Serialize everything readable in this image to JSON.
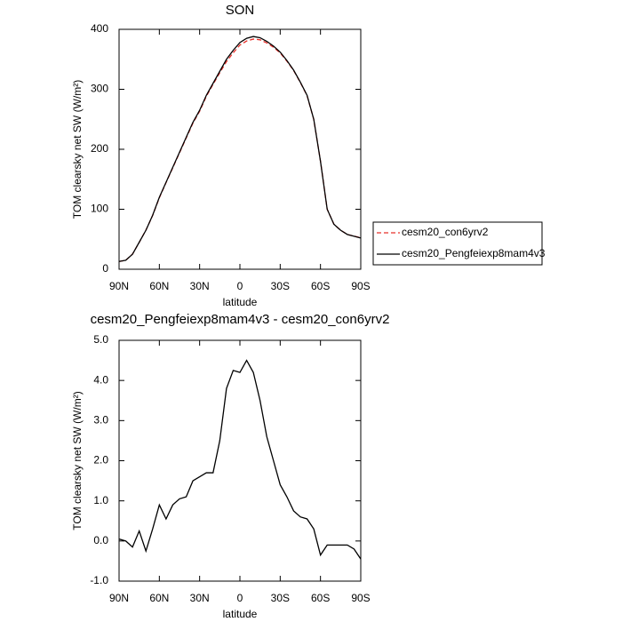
{
  "chart_data": [
    {
      "type": "line",
      "title": "SON",
      "xlabel": "latitude",
      "ylabel": "TOM clearsky net SW (W/m²)",
      "x": [
        90,
        85,
        80,
        75,
        70,
        65,
        60,
        55,
        50,
        45,
        40,
        35,
        30,
        25,
        20,
        15,
        10,
        5,
        0,
        -5,
        -10,
        -15,
        -20,
        -25,
        -30,
        -35,
        -40,
        -45,
        -50,
        -55,
        -60,
        -65,
        -70,
        -75,
        -80,
        -85,
        -90
      ],
      "xlim": [
        90,
        -90
      ],
      "xticks": [
        {
          "value": 90,
          "label": "90N"
        },
        {
          "value": 60,
          "label": "60N"
        },
        {
          "value": 30,
          "label": "30N"
        },
        0,
        {
          "value": -30,
          "label": "30S"
        },
        {
          "value": -60,
          "label": "60S"
        },
        {
          "value": -90,
          "label": "90S"
        }
      ],
      "ylim": [
        0,
        400
      ],
      "yticks": [
        0,
        100,
        200,
        300,
        400
      ],
      "legend": "outside-right",
      "series": [
        {
          "name": "cesm20_con6yrv2",
          "color": "#e8302a",
          "dash": true,
          "values": [
            13,
            15,
            25.2,
            44.8,
            65.2,
            89.7,
            119.1,
            144.5,
            169.1,
            194,
            218.9,
            243.5,
            263.4,
            288.3,
            308.3,
            327.5,
            346.2,
            360.8,
            373.8,
            380.5,
            383.8,
            382.5,
            377.4,
            370,
            360.6,
            346.9,
            331.3,
            311.4,
            289.5,
            249.7,
            180.4,
            100.1,
            75.1,
            65.1,
            58.1,
            55.2,
            52.5
          ]
        },
        {
          "name": "cesm20_Pengfeiexp8mam4v3",
          "color": "#000000",
          "dash": false,
          "values": [
            13,
            15,
            25,
            45,
            65,
            90,
            120,
            145,
            170,
            195,
            220,
            245,
            265,
            290,
            310,
            330,
            350,
            365,
            378,
            385,
            388,
            386,
            380,
            372,
            362,
            348,
            332,
            312,
            290,
            250,
            180,
            100,
            75,
            65,
            58,
            55,
            52
          ]
        }
      ]
    },
    {
      "type": "line",
      "title": "cesm20_Pengfeiexp8mam4v3 - cesm20_con6yrv2",
      "xlabel": "latitude",
      "ylabel": "TOM clearsky net SW (W/m²)",
      "x": [
        90,
        85,
        80,
        75,
        70,
        65,
        60,
        55,
        50,
        45,
        40,
        35,
        30,
        25,
        20,
        15,
        10,
        5,
        0,
        -5,
        -10,
        -15,
        -20,
        -25,
        -30,
        -35,
        -40,
        -45,
        -50,
        -55,
        -60,
        -65,
        -70,
        -75,
        -80,
        -85,
        -90
      ],
      "xlim": [
        90,
        -90
      ],
      "xticks": [
        {
          "value": 90,
          "label": "90N"
        },
        {
          "value": 60,
          "label": "60N"
        },
        {
          "value": 30,
          "label": "30N"
        },
        0,
        {
          "value": -30,
          "label": "30S"
        },
        {
          "value": -60,
          "label": "60S"
        },
        {
          "value": -90,
          "label": "90S"
        }
      ],
      "ylim": [
        -1,
        5
      ],
      "yticks": [
        {
          "value": -1,
          "label": "-1.0"
        },
        {
          "value": 0,
          "label": "0.0"
        },
        {
          "value": 1,
          "label": "1.0"
        },
        {
          "value": 2,
          "label": "2.0"
        },
        {
          "value": 3,
          "label": "3.0"
        },
        {
          "value": 4,
          "label": "4.0"
        },
        {
          "value": 5,
          "label": "5.0"
        }
      ],
      "series": [
        {
          "color": "#000000",
          "dash": false,
          "values": [
            0.05,
            0.0,
            -0.15,
            0.25,
            -0.25,
            0.3,
            0.9,
            0.55,
            0.9,
            1.05,
            1.1,
            1.5,
            1.6,
            1.7,
            1.7,
            2.5,
            3.8,
            4.25,
            4.2,
            4.5,
            4.2,
            3.5,
            2.6,
            2.0,
            1.4,
            1.1,
            0.75,
            0.6,
            0.55,
            0.3,
            -0.35,
            -0.1,
            -0.1,
            -0.1,
            -0.1,
            -0.2,
            -0.45
          ]
        }
      ]
    }
  ]
}
